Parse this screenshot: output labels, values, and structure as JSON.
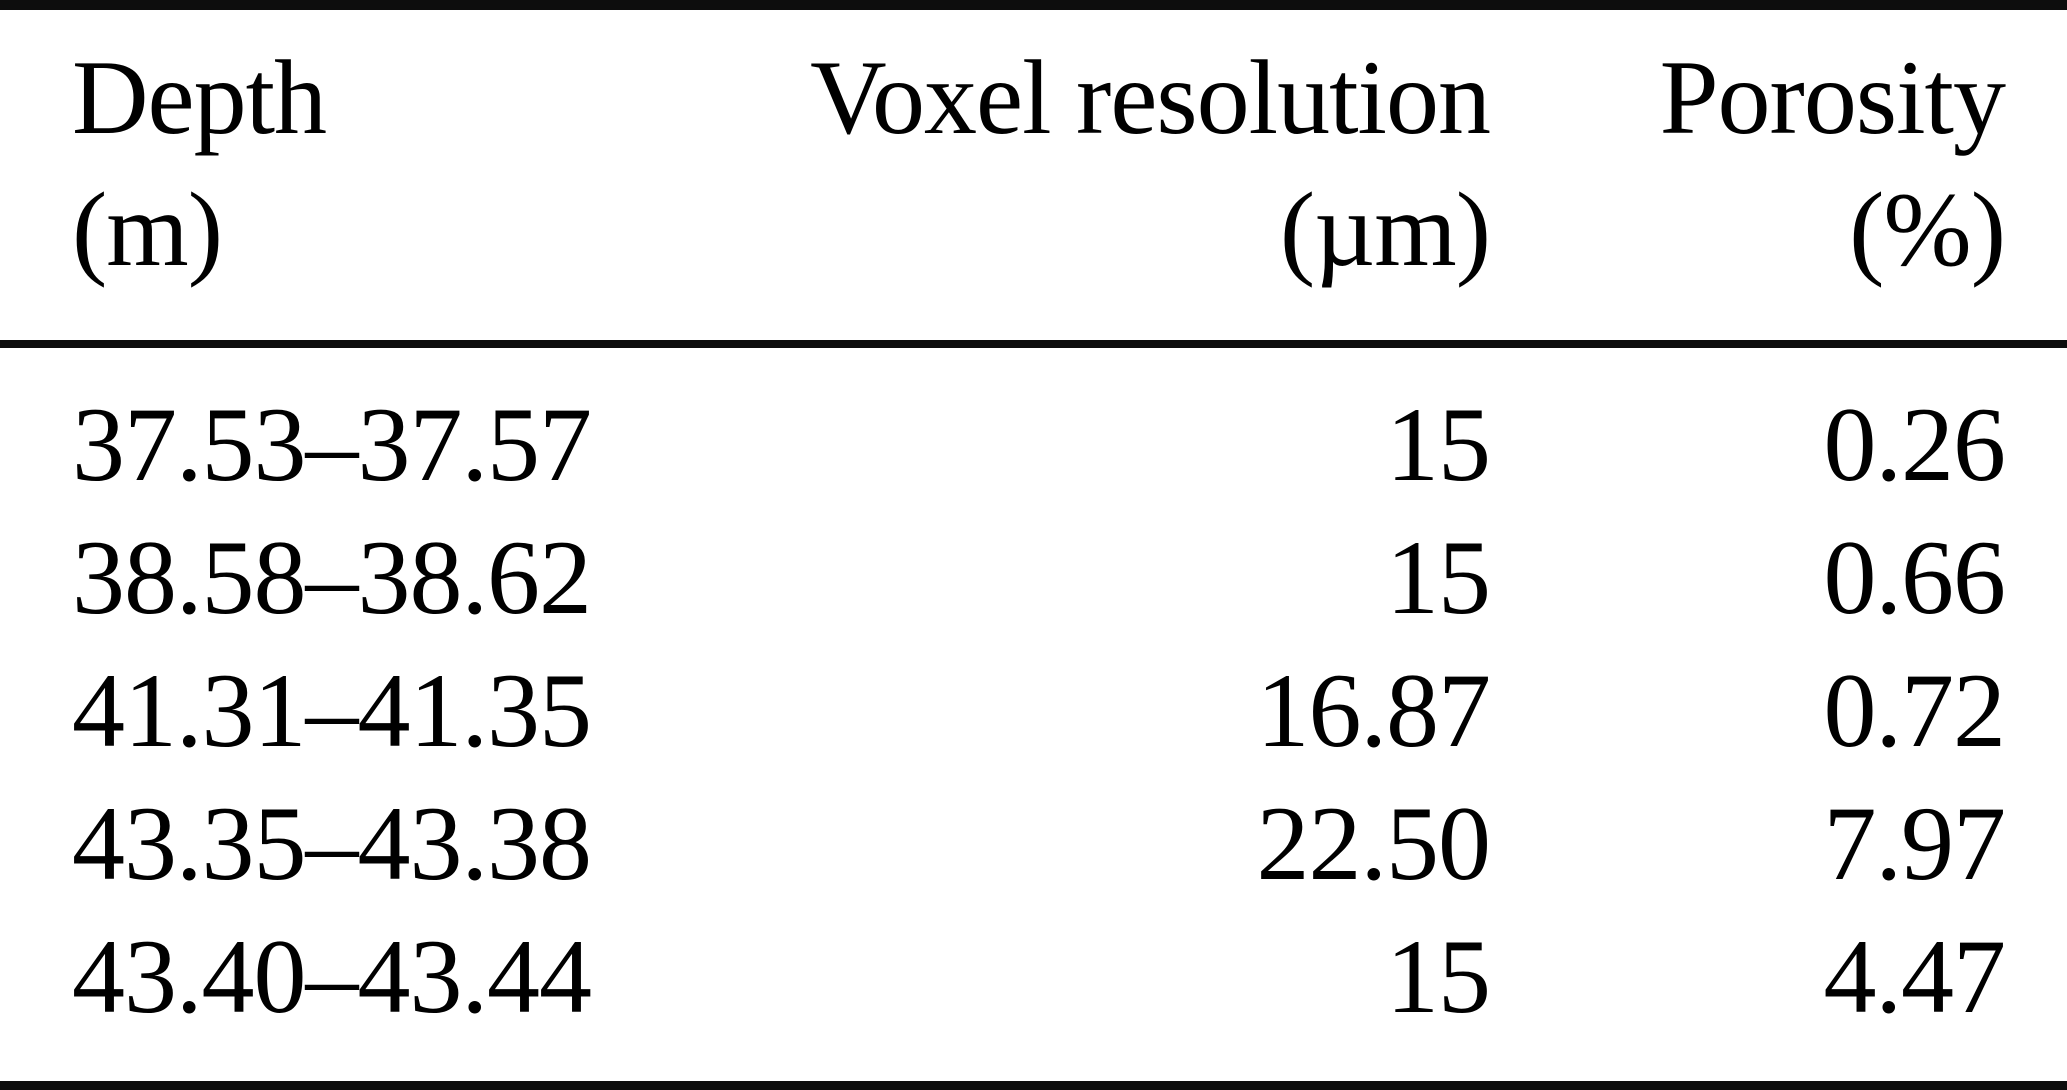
{
  "colors": {
    "background": "#ffffff",
    "text": "#000000",
    "rule": "#0d0d0d"
  },
  "table": {
    "header": {
      "col1": {
        "label": "Depth",
        "unit": "(m)"
      },
      "col2": {
        "label": "Voxel resolution",
        "unit": "(µm)"
      },
      "col3": {
        "label": "Porosity",
        "unit": "(%)"
      }
    },
    "rows": [
      {
        "depth": "37.53–37.57",
        "voxel_resolution": "15",
        "porosity": "0.26"
      },
      {
        "depth": "38.58–38.62",
        "voxel_resolution": "15",
        "porosity": "0.66"
      },
      {
        "depth": "41.31–41.35",
        "voxel_resolution": "16.87",
        "porosity": "0.72"
      },
      {
        "depth": "43.35–43.38",
        "voxel_resolution": "22.50",
        "porosity": "7.97"
      },
      {
        "depth": "43.40–43.44",
        "voxel_resolution": "15",
        "porosity": "4.47"
      }
    ]
  },
  "chart_data": {
    "type": "table",
    "columns": [
      "Depth (m)",
      "Voxel resolution (µm)",
      "Porosity (%)"
    ],
    "rows": [
      [
        "37.53–37.57",
        "15",
        "0.26"
      ],
      [
        "38.58–38.62",
        "15",
        "0.66"
      ],
      [
        "41.31–41.35",
        "16.87",
        "0.72"
      ],
      [
        "43.35–43.38",
        "22.50",
        "7.97"
      ],
      [
        "43.40–43.44",
        "15",
        "4.47"
      ]
    ]
  }
}
